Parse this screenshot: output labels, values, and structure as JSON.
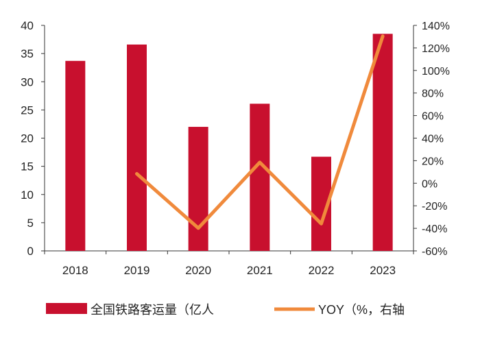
{
  "chart_data": {
    "type": "bar",
    "categories": [
      "2018",
      "2019",
      "2020",
      "2021",
      "2022",
      "2023"
    ],
    "series": [
      {
        "name": "全国铁路客运量（亿人",
        "type": "bar",
        "axis": "left",
        "values": [
          33.7,
          36.6,
          22.0,
          26.1,
          16.7,
          38.5
        ]
      },
      {
        "name": "YOY（%，右轴",
        "type": "line",
        "axis": "right",
        "values": [
          null,
          8.4,
          -39.8,
          18.5,
          -35.9,
          130.4
        ]
      }
    ],
    "left_axis": {
      "ylim": [
        0,
        40
      ],
      "ticks": [
        "0",
        "5",
        "10",
        "15",
        "20",
        "25",
        "30",
        "35",
        "40"
      ]
    },
    "right_axis": {
      "ylim": [
        -60,
        140
      ],
      "ticks": [
        "-60%",
        "-40%",
        "-20%",
        "0%",
        "20%",
        "40%",
        "60%",
        "80%",
        "100%",
        "120%",
        "140%"
      ]
    },
    "colors": {
      "bar": "#c8102e",
      "line": "#f08a3c",
      "axis": "#333333"
    },
    "grid": false,
    "legend_position": "bottom"
  }
}
